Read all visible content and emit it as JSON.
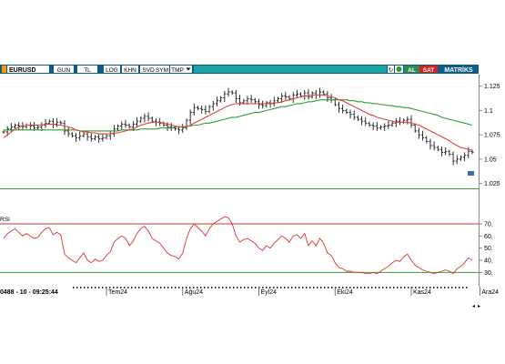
{
  "toolbar": {
    "symbol": "EURUSD",
    "buttons": [
      "GUN",
      "TL",
      "LOG",
      "KHN",
      "SVD",
      "SYM",
      "TMP"
    ],
    "right_buttons": {
      "al": "AL",
      "sat": "SAT",
      "matriks": "MATRİKS"
    }
  },
  "status": {
    "left_text": "0488 - 10 - 09:25:44"
  },
  "colors": {
    "toolbar_bg": "#0b5c8c",
    "accent_teal": "#1ba3a3",
    "al_green": "#2e8b57",
    "sat_red": "#d42020",
    "price_bars": "#1a1a1a",
    "ma_short": "#e0403a",
    "ma_long": "#2e9a3a",
    "rsi_line": "#e03030",
    "rsi_levels": "#c0392b",
    "frame_green": "#3a9a3a"
  },
  "chart_data": [
    {
      "type": "ohlc",
      "y_ticks": [
        1.025,
        1.05,
        1.075,
        1.1,
        1.125
      ],
      "ylim": [
        1.02,
        1.135
      ],
      "x_ticks": [
        "Tem24",
        "Ağu24",
        "Eyl24",
        "Eki24",
        "Kas24",
        "Ara24"
      ],
      "x_tick_index": [
        27,
        47,
        67,
        87,
        107,
        125
      ],
      "series": [
        {
          "name": "price",
          "close": [
            1.078,
            1.081,
            1.083,
            1.085,
            1.084,
            1.083,
            1.085,
            1.084,
            1.082,
            1.083,
            1.085,
            1.087,
            1.089,
            1.086,
            1.088,
            1.087,
            1.079,
            1.076,
            1.074,
            1.072,
            1.074,
            1.076,
            1.073,
            1.071,
            1.073,
            1.071,
            1.072,
            1.074,
            1.076,
            1.081,
            1.084,
            1.086,
            1.085,
            1.083,
            1.086,
            1.089,
            1.092,
            1.094,
            1.092,
            1.089,
            1.088,
            1.087,
            1.085,
            1.083,
            1.082,
            1.081,
            1.08,
            1.082,
            1.09,
            1.098,
            1.103,
            1.102,
            1.101,
            1.099,
            1.104,
            1.107,
            1.11,
            1.113,
            1.117,
            1.119,
            1.118,
            1.112,
            1.108,
            1.11,
            1.112,
            1.111,
            1.109,
            1.106,
            1.105,
            1.108,
            1.107,
            1.11,
            1.112,
            1.115,
            1.114,
            1.112,
            1.116,
            1.117,
            1.115,
            1.118,
            1.114,
            1.118,
            1.116,
            1.119,
            1.117,
            1.113,
            1.111,
            1.106,
            1.102,
            1.1,
            1.098,
            1.096,
            1.093,
            1.091,
            1.089,
            1.087,
            1.085,
            1.084,
            1.082,
            1.083,
            1.084,
            1.085,
            1.087,
            1.089,
            1.088,
            1.09,
            1.091,
            1.085,
            1.079,
            1.075,
            1.072,
            1.068,
            1.064,
            1.062,
            1.06,
            1.057,
            1.058,
            1.055,
            1.048,
            1.05,
            1.052,
            1.054,
            1.058,
            1.057
          ]
        },
        {
          "name": "ma_short",
          "values": [
            1.072,
            1.075,
            1.078,
            1.081,
            1.083,
            1.084,
            1.085,
            1.085,
            1.085,
            1.085,
            1.085,
            1.086,
            1.086,
            1.086,
            1.085,
            1.085,
            1.084,
            1.083,
            1.082,
            1.08,
            1.079,
            1.078,
            1.078,
            1.077,
            1.077,
            1.076,
            1.076,
            1.076,
            1.076,
            1.077,
            1.077,
            1.078,
            1.079,
            1.08,
            1.081,
            1.083,
            1.085,
            1.086,
            1.087,
            1.088,
            1.088,
            1.088,
            1.087,
            1.086,
            1.085,
            1.084,
            1.083,
            1.083,
            1.083,
            1.085,
            1.087,
            1.089,
            1.091,
            1.093,
            1.095,
            1.097,
            1.099,
            1.101,
            1.103,
            1.105,
            1.106,
            1.107,
            1.107,
            1.107,
            1.107,
            1.107,
            1.107,
            1.107,
            1.107,
            1.107,
            1.107,
            1.108,
            1.108,
            1.109,
            1.11,
            1.111,
            1.112,
            1.113,
            1.114,
            1.115,
            1.115,
            1.116,
            1.116,
            1.116,
            1.116,
            1.115,
            1.114,
            1.113,
            1.111,
            1.11,
            1.108,
            1.106,
            1.104,
            1.102,
            1.1,
            1.098,
            1.096,
            1.095,
            1.093,
            1.092,
            1.091,
            1.09,
            1.089,
            1.088,
            1.088,
            1.088,
            1.088,
            1.087,
            1.086,
            1.085,
            1.083,
            1.081,
            1.079,
            1.077,
            1.075,
            1.073,
            1.071,
            1.069,
            1.066,
            1.064,
            1.062,
            1.061,
            1.06,
            1.059
          ]
        },
        {
          "name": "ma_long",
          "values": [
            1.08,
            1.08,
            1.08,
            1.08,
            1.08,
            1.08,
            1.08,
            1.08,
            1.08,
            1.08,
            1.08,
            1.08,
            1.08,
            1.08,
            1.08,
            1.08,
            1.08,
            1.08,
            1.08,
            1.08,
            1.079,
            1.079,
            1.079,
            1.079,
            1.079,
            1.079,
            1.079,
            1.079,
            1.079,
            1.079,
            1.079,
            1.08,
            1.08,
            1.08,
            1.08,
            1.08,
            1.081,
            1.081,
            1.081,
            1.081,
            1.081,
            1.082,
            1.082,
            1.082,
            1.082,
            1.083,
            1.083,
            1.083,
            1.084,
            1.084,
            1.085,
            1.085,
            1.086,
            1.087,
            1.087,
            1.088,
            1.089,
            1.09,
            1.091,
            1.092,
            1.093,
            1.093,
            1.094,
            1.095,
            1.096,
            1.097,
            1.098,
            1.098,
            1.099,
            1.1,
            1.101,
            1.102,
            1.103,
            1.104,
            1.104,
            1.105,
            1.106,
            1.107,
            1.107,
            1.108,
            1.109,
            1.109,
            1.11,
            1.111,
            1.111,
            1.111,
            1.111,
            1.111,
            1.111,
            1.111,
            1.111,
            1.11,
            1.11,
            1.109,
            1.109,
            1.108,
            1.108,
            1.107,
            1.107,
            1.106,
            1.106,
            1.105,
            1.105,
            1.104,
            1.104,
            1.103,
            1.103,
            1.102,
            1.101,
            1.1,
            1.099,
            1.098,
            1.097,
            1.096,
            1.095,
            1.093,
            1.092,
            1.091,
            1.09,
            1.089,
            1.088,
            1.087,
            1.086,
            1.085
          ]
        }
      ]
    },
    {
      "type": "line",
      "title": "RSI",
      "y_ticks": [
        30,
        40,
        50,
        60,
        70
      ],
      "ylim": [
        25,
        76
      ],
      "levels": [
        70,
        30
      ],
      "series": [
        {
          "name": "RSI",
          "values": [
            58,
            62,
            64,
            66,
            63,
            60,
            62,
            60,
            58,
            59,
            63,
            66,
            67,
            61,
            63,
            61,
            45,
            42,
            40,
            38,
            42,
            46,
            40,
            38,
            41,
            39,
            40,
            44,
            47,
            55,
            58,
            60,
            58,
            52,
            56,
            62,
            66,
            68,
            64,
            58,
            56,
            54,
            50,
            46,
            44,
            43,
            41,
            46,
            58,
            66,
            70,
            67,
            64,
            60,
            66,
            70,
            72,
            74,
            76,
            75,
            70,
            60,
            55,
            57,
            58,
            56,
            54,
            50,
            48,
            52,
            50,
            54,
            57,
            60,
            58,
            55,
            60,
            61,
            58,
            62,
            52,
            56,
            52,
            58,
            54,
            46,
            44,
            38,
            34,
            33,
            31,
            31,
            30,
            30,
            30,
            29,
            29,
            30,
            29,
            31,
            33,
            35,
            38,
            40,
            39,
            43,
            45,
            40,
            36,
            34,
            32,
            31,
            30,
            29,
            30,
            31,
            32,
            31,
            29,
            33,
            35,
            38,
            42,
            40
          ]
        }
      ]
    }
  ]
}
